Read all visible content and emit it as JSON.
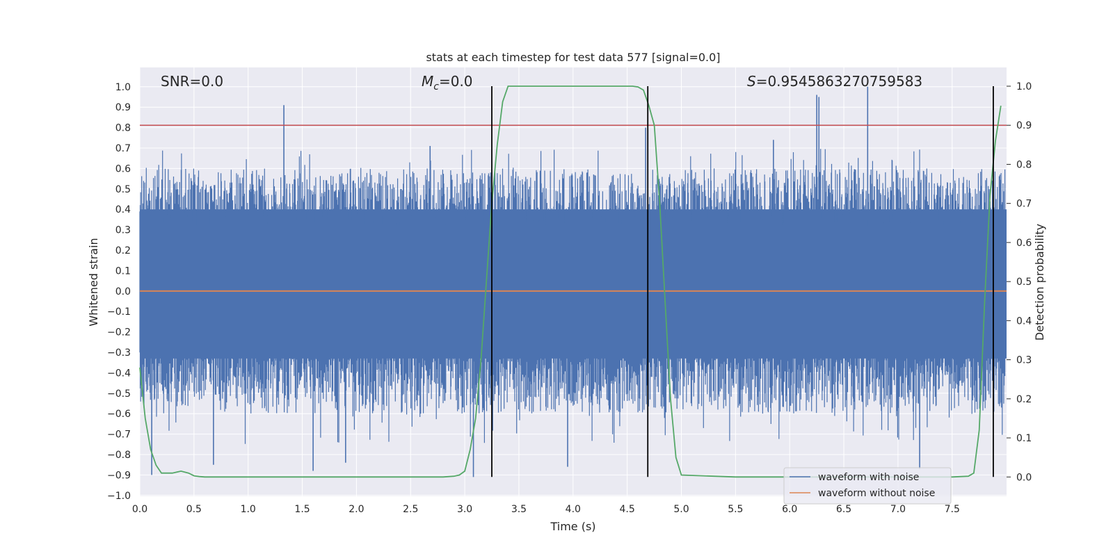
{
  "chart_data": {
    "type": "line",
    "title": "stats at each timestep for test data 577 [signal=0.0]",
    "xlabel": "Time (s)",
    "ylabel": "Whitened strain",
    "ylabel_right": "Detection probability",
    "xlim": [
      0.0,
      8.0
    ],
    "ylim": [
      -1.0,
      1.1
    ],
    "ylim_right": [
      -0.048,
      1.048
    ],
    "x_ticks": [
      "0.0",
      "0.5",
      "1.0",
      "1.5",
      "2.0",
      "2.5",
      "3.0",
      "3.5",
      "4.0",
      "4.5",
      "5.0",
      "5.5",
      "6.0",
      "6.5",
      "7.0",
      "7.5"
    ],
    "x_tick_values": [
      0.0,
      0.5,
      1.0,
      1.5,
      2.0,
      2.5,
      3.0,
      3.5,
      4.0,
      4.5,
      5.0,
      5.5,
      6.0,
      6.5,
      7.0,
      7.5
    ],
    "y_ticks": [
      "1.0",
      "0.9",
      "0.8",
      "0.7",
      "0.6",
      "0.5",
      "0.4",
      "0.3",
      "0.2",
      "0.1",
      "0.0",
      "−0.1",
      "−0.2",
      "−0.3",
      "−0.4",
      "−0.5",
      "−0.6",
      "−0.7",
      "−0.8",
      "−0.9",
      "−1.0"
    ],
    "y_tick_values": [
      1.0,
      0.9,
      0.8,
      0.7,
      0.6,
      0.5,
      0.4,
      0.3,
      0.2,
      0.1,
      0.0,
      -0.1,
      -0.2,
      -0.3,
      -0.4,
      -0.5,
      -0.6,
      -0.7,
      -0.8,
      -0.9,
      -1.0
    ],
    "y2_ticks": [
      "1.0",
      "0.9",
      "0.8",
      "0.7",
      "0.6",
      "0.5",
      "0.4",
      "0.3",
      "0.2",
      "0.1",
      "0.0"
    ],
    "y2_tick_values": [
      1.0,
      0.9,
      0.8,
      0.7,
      0.6,
      0.5,
      0.4,
      0.3,
      0.2,
      0.1,
      0.0
    ],
    "annotations": {
      "snr": "SNR=0.0",
      "mc_symbol": "M",
      "mc_sub": "c",
      "mc_value": "=0.0",
      "s_symbol": "S",
      "s_value": "=0.9545863270759583"
    },
    "threshold_line": {
      "y2": 0.9,
      "color": "#c44e52"
    },
    "vertical_lines": [
      3.25,
      4.69,
      7.88
    ],
    "series": [
      {
        "name": "waveform with noise",
        "color": "#4c72b0",
        "description": "noisy whitened strain, approx. range -0.9 to 0.9",
        "spikes_up": [
          [
            1.33,
            0.91
          ],
          [
            6.25,
            0.96
          ],
          [
            6.27,
            0.95
          ],
          [
            6.72,
            1.0
          ],
          [
            4.67,
            0.8
          ],
          [
            2.68,
            0.71
          ],
          [
            5.85,
            0.74
          ]
        ],
        "spikes_down": [
          [
            0.11,
            -0.9
          ],
          [
            1.6,
            -0.88
          ],
          [
            3.08,
            -0.91
          ],
          [
            3.95,
            -0.86
          ],
          [
            7.2,
            -0.87
          ],
          [
            0.68,
            -0.85
          ],
          [
            1.9,
            -0.84
          ]
        ]
      },
      {
        "name": "waveform without noise",
        "color": "#dd8452",
        "x": [
          0.0,
          8.0
        ],
        "y": [
          0.0,
          0.0
        ]
      },
      {
        "name": "detection probability",
        "color": "#55a868",
        "axis": "right",
        "x": [
          0.0,
          0.05,
          0.1,
          0.15,
          0.2,
          0.25,
          0.3,
          0.38,
          0.45,
          0.5,
          0.55,
          0.6,
          0.8,
          1.0,
          1.5,
          2.0,
          2.5,
          2.8,
          2.9,
          2.95,
          3.0,
          3.05,
          3.1,
          3.15,
          3.2,
          3.25,
          3.3,
          3.35,
          3.4,
          3.5,
          4.0,
          4.5,
          4.55,
          4.6,
          4.65,
          4.7,
          4.75,
          4.8,
          4.85,
          4.9,
          4.95,
          5.0,
          5.5,
          6.0,
          6.5,
          7.0,
          7.5,
          7.65,
          7.7,
          7.75,
          7.8,
          7.85,
          7.9,
          7.95
        ],
        "y": [
          0.28,
          0.15,
          0.07,
          0.03,
          0.01,
          0.01,
          0.01,
          0.015,
          0.01,
          0.003,
          0.001,
          0.0,
          0.0,
          0.0,
          0.0,
          0.0,
          0.0,
          0.0,
          0.002,
          0.005,
          0.015,
          0.07,
          0.15,
          0.3,
          0.5,
          0.7,
          0.85,
          0.96,
          1.0,
          1.0,
          1.0,
          1.0,
          1.0,
          0.998,
          0.99,
          0.95,
          0.9,
          0.7,
          0.45,
          0.2,
          0.05,
          0.005,
          0.0,
          0.0,
          0.0,
          0.0,
          0.0,
          0.002,
          0.01,
          0.12,
          0.45,
          0.72,
          0.86,
          0.95
        ]
      }
    ],
    "legend": {
      "placement": "bottom-right",
      "items": [
        {
          "label": "waveform with noise",
          "color": "#4c72b0"
        },
        {
          "label": "waveform without noise",
          "color": "#dd8452"
        }
      ]
    },
    "grid": true,
    "style": {
      "background": "#eaeaf2",
      "grid_color": "#ffffff"
    }
  }
}
